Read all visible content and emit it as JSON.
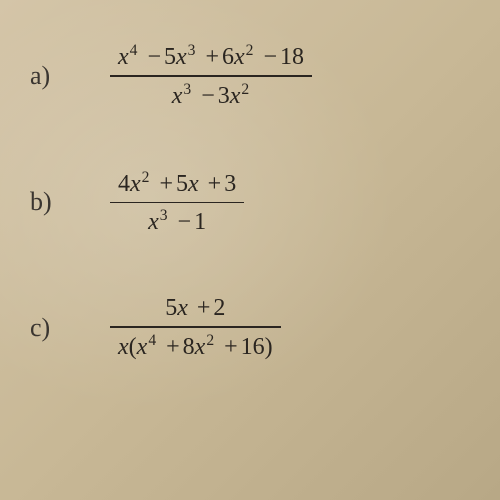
{
  "problems": [
    {
      "label": "a)",
      "numerator": {
        "terms": [
          {
            "var": "x",
            "exp": "4"
          },
          {
            "op": "−",
            "coef": "5",
            "var": "x",
            "exp": "3"
          },
          {
            "op": "+",
            "coef": "6",
            "var": "x",
            "exp": "2"
          },
          {
            "op": "−",
            "const": "18"
          }
        ]
      },
      "denominator": {
        "terms": [
          {
            "var": "x",
            "exp": "3"
          },
          {
            "op": "−",
            "coef": "3",
            "var": "x",
            "exp": "2"
          }
        ]
      }
    },
    {
      "label": "b)",
      "numerator": {
        "terms": [
          {
            "coef": "4",
            "var": "x",
            "exp": "2"
          },
          {
            "op": "+",
            "coef": "5",
            "var": "x"
          },
          {
            "op": "+",
            "const": "3"
          }
        ]
      },
      "denominator": {
        "terms": [
          {
            "var": "x",
            "exp": "3"
          },
          {
            "op": "−",
            "const": "1"
          }
        ]
      }
    },
    {
      "label": "c)",
      "numerator": {
        "terms": [
          {
            "coef": "5",
            "var": "x"
          },
          {
            "op": "+",
            "const": "2"
          }
        ]
      },
      "denominator": {
        "prefix_var": "x",
        "paren_terms": [
          {
            "var": "x",
            "exp": "4"
          },
          {
            "op": "+",
            "coef": "8",
            "var": "x",
            "exp": "2"
          },
          {
            "op": "+",
            "const": "16"
          }
        ]
      }
    }
  ],
  "colors": {
    "background_start": "#d4c5a8",
    "background_end": "#b8a886",
    "text": "#2a2520",
    "label": "#3a3530"
  },
  "typography": {
    "label_fontsize": 26,
    "math_fontsize": 24,
    "font_family": "Times New Roman"
  }
}
